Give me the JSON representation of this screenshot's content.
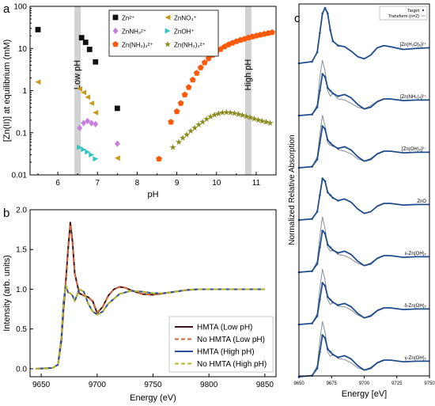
{
  "chart_data": [
    {
      "panel": "a",
      "type": "scatter",
      "xlabel": "pH",
      "ylabel": "[Zn(II)] at equilibrium (mM)",
      "xlim": [
        5.3,
        11.5
      ],
      "ylim": [
        0.01,
        100
      ],
      "yscale": "log",
      "xticks": [
        "6",
        "7",
        "8",
        "9",
        "10",
        "11"
      ],
      "yticks": [
        "0.01",
        "0.1",
        "1",
        "10",
        "100"
      ],
      "bands": [
        {
          "x": [
            6.42,
            6.58
          ],
          "label": "Low pH"
        },
        {
          "x": [
            10.72,
            10.88
          ],
          "label": "High pH"
        }
      ],
      "legend_position": "top-center",
      "series": [
        {
          "name": "Zn²⁺",
          "marker": "square",
          "color": "#111111",
          "x": [
            5.5,
            6.6,
            6.7,
            6.8,
            6.95,
            7.5
          ],
          "y": [
            28,
            18,
            14,
            9.5,
            4.8,
            0.38
          ]
        },
        {
          "name": "ZnNO₃⁺",
          "marker": "triangle-left",
          "color": "#c8991a",
          "x": [
            5.5,
            6.55,
            6.65,
            6.75,
            6.85,
            6.95,
            7.5
          ],
          "y": [
            1.6,
            1.1,
            0.9,
            0.7,
            0.5,
            0.3,
            0.025
          ]
        },
        {
          "name": "ZnNH₃²⁺",
          "marker": "diamond",
          "color": "#c77de0",
          "x": [
            6.55,
            6.65,
            6.75,
            6.85,
            6.95,
            7.5
          ],
          "y": [
            0.13,
            0.17,
            0.19,
            0.17,
            0.16,
            0.055
          ]
        },
        {
          "name": "ZnOH⁺",
          "marker": "triangle-right",
          "color": "#2ec4c4",
          "x": [
            6.55,
            6.65,
            6.75,
            6.85,
            6.95
          ],
          "y": [
            0.045,
            0.04,
            0.035,
            0.03,
            0.024
          ]
        },
        {
          "name": "Zn(NH₃)₄²⁺",
          "marker": "pentagon",
          "color": "#ff5a0a",
          "x": [
            8.55,
            8.85,
            9.0,
            9.1,
            9.2,
            9.3,
            9.4,
            9.5,
            9.6,
            9.7,
            9.8,
            9.9,
            10.0,
            10.1,
            10.2,
            10.3,
            10.4,
            10.5,
            10.6,
            10.7,
            10.8,
            10.9,
            11.0,
            11.1,
            11.2,
            11.3,
            11.4
          ],
          "y": [
            0.024,
            0.18,
            0.32,
            0.5,
            0.8,
            1.2,
            1.8,
            2.6,
            3.5,
            4.6,
            5.8,
            7.0,
            8.3,
            9.6,
            11,
            12.3,
            13.5,
            14.7,
            15.8,
            16.8,
            18,
            19,
            20,
            21,
            22,
            23,
            24
          ]
        },
        {
          "name": "Zn(NH₃)₃²⁺",
          "marker": "star",
          "color": "#8a8a1e",
          "x": [
            8.9,
            9.05,
            9.15,
            9.25,
            9.35,
            9.45,
            9.55,
            9.65,
            9.75,
            9.85,
            9.95,
            10.05,
            10.15,
            10.25,
            10.35,
            10.45,
            10.55,
            10.65,
            10.75,
            10.85,
            10.95,
            11.05,
            11.15,
            11.25,
            11.35
          ],
          "y": [
            0.045,
            0.06,
            0.075,
            0.09,
            0.11,
            0.13,
            0.155,
            0.18,
            0.21,
            0.24,
            0.265,
            0.285,
            0.3,
            0.305,
            0.3,
            0.29,
            0.275,
            0.26,
            0.245,
            0.23,
            0.215,
            0.2,
            0.19,
            0.18,
            0.17
          ]
        }
      ]
    },
    {
      "panel": "b",
      "type": "line",
      "xlabel": "Energy (eV)",
      "ylabel": "Intensity (arb. units)",
      "xlim": [
        9640,
        9860
      ],
      "ylim": [
        -0.1,
        2.0
      ],
      "xticks": [
        "9650",
        "9700",
        "9750",
        "9800",
        "9850"
      ],
      "yticks": [
        "0.0",
        "0.5",
        "1.0",
        "1.5",
        "2.0"
      ],
      "legend_position": "bottom-right",
      "series": [
        {
          "name": "HMTA (Low pH)",
          "color": "#3a1414",
          "dash": "solid",
          "x": [
            9645,
            9660,
            9665,
            9668,
            9670,
            9672,
            9674,
            9676,
            9678,
            9680,
            9684,
            9688,
            9692,
            9696,
            9700,
            9705,
            9710,
            9715,
            9720,
            9725,
            9730,
            9740,
            9750,
            9760,
            9770,
            9780,
            9790,
            9800,
            9820,
            9850
          ],
          "y": [
            0.0,
            0.01,
            0.05,
            0.35,
            0.75,
            1.1,
            1.5,
            1.84,
            1.6,
            1.2,
            0.95,
            0.92,
            0.9,
            0.85,
            0.7,
            0.78,
            0.92,
            1.0,
            1.03,
            1.02,
            0.99,
            0.94,
            0.93,
            0.95,
            0.97,
            0.99,
            1.0,
            1.0,
            1.0,
            1.0
          ]
        },
        {
          "name": "No HMTA (Low pH)",
          "color": "#d0643c",
          "dash": "dashed",
          "x": [
            9645,
            9660,
            9665,
            9668,
            9670,
            9672,
            9674,
            9676,
            9678,
            9680,
            9684,
            9688,
            9692,
            9696,
            9700,
            9705,
            9710,
            9715,
            9720,
            9725,
            9730,
            9740,
            9750,
            9760,
            9770,
            9780,
            9790,
            9800,
            9820,
            9850
          ],
          "y": [
            0.0,
            0.01,
            0.05,
            0.35,
            0.76,
            1.12,
            1.52,
            1.82,
            1.58,
            1.2,
            0.95,
            0.92,
            0.9,
            0.85,
            0.71,
            0.78,
            0.92,
            1.0,
            1.03,
            1.02,
            0.99,
            0.94,
            0.93,
            0.95,
            0.97,
            0.99,
            1.0,
            1.0,
            1.0,
            1.0
          ]
        },
        {
          "name": "HMTA (High pH)",
          "color": "#2b4ea2",
          "dash": "solid",
          "x": [
            9645,
            9660,
            9665,
            9668,
            9670,
            9672,
            9674,
            9676,
            9678,
            9680,
            9684,
            9688,
            9692,
            9696,
            9700,
            9705,
            9710,
            9720,
            9730,
            9740,
            9750,
            9760,
            9770,
            9780,
            9790,
            9800,
            9820,
            9850
          ],
          "y": [
            0.0,
            0.01,
            0.05,
            0.4,
            0.85,
            1.05,
            0.96,
            0.95,
            0.92,
            0.85,
            1.0,
            0.97,
            0.82,
            0.72,
            0.68,
            0.72,
            0.82,
            0.94,
            0.98,
            0.97,
            0.95,
            0.95,
            0.97,
            0.99,
            1.0,
            1.0,
            1.0,
            1.0
          ]
        },
        {
          "name": "No HMTA (High pH)",
          "color": "#b7b42a",
          "dash": "dashed",
          "x": [
            9645,
            9660,
            9665,
            9668,
            9670,
            9672,
            9674,
            9676,
            9678,
            9680,
            9684,
            9688,
            9692,
            9696,
            9700,
            9705,
            9710,
            9720,
            9730,
            9740,
            9750,
            9760,
            9770,
            9780,
            9790,
            9800,
            9820,
            9850
          ],
          "y": [
            0.0,
            0.01,
            0.05,
            0.4,
            0.85,
            1.05,
            0.96,
            0.95,
            0.92,
            0.85,
            1.0,
            0.97,
            0.82,
            0.72,
            0.68,
            0.72,
            0.82,
            0.94,
            0.98,
            0.97,
            0.95,
            0.95,
            0.97,
            0.99,
            1.0,
            1.0,
            1.0,
            1.0
          ]
        }
      ]
    },
    {
      "panel": "c",
      "type": "line",
      "xlabel": "Energy [eV]",
      "ylabel": "Normalized Relative Absorption",
      "xlim": [
        9650,
        9750
      ],
      "xticks": [
        "9650",
        "9675",
        "9700",
        "9725",
        "9750"
      ],
      "legend": [
        "Target",
        "Transform (n=2)"
      ],
      "legend_position": "top-right",
      "target_color": "#1f4d8c",
      "reference_color": "#8a8f98",
      "spectra": [
        {
          "label": "[Zn(H₂O)₆]²⁺",
          "kind": "fit-only",
          "x": [
            9650,
            9660,
            9664,
            9666,
            9668,
            9670,
            9672,
            9674,
            9676,
            9680,
            9685,
            9690,
            9695,
            9700,
            9705,
            9710,
            9715,
            9720,
            9730,
            9740,
            9750
          ],
          "y": [
            0.0,
            0.03,
            0.2,
            0.55,
            0.9,
            1.0,
            0.9,
            0.6,
            0.4,
            0.32,
            0.3,
            0.22,
            0.12,
            0.08,
            0.15,
            0.28,
            0.32,
            0.3,
            0.25,
            0.27,
            0.28
          ]
        },
        {
          "label": "[Zn(NH₃)₄]²⁺",
          "kind": "comparison",
          "x": [
            9650,
            9660,
            9664,
            9666,
            9668,
            9670,
            9672,
            9674,
            9676,
            9680,
            9685,
            9690,
            9695,
            9700,
            9705,
            9710,
            9715,
            9720,
            9730,
            9740,
            9750
          ],
          "y": [
            0.0,
            0.02,
            0.15,
            0.45,
            0.75,
            0.7,
            0.5,
            0.45,
            0.4,
            0.35,
            0.38,
            0.32,
            0.2,
            0.12,
            0.15,
            0.25,
            0.3,
            0.3,
            0.27,
            0.28,
            0.28
          ],
          "ref_y": [
            0.0,
            0.02,
            0.2,
            0.7,
            1.0,
            0.8,
            0.45,
            0.35,
            0.4,
            0.3,
            0.28,
            0.22,
            0.15,
            0.12,
            0.18,
            0.26,
            0.3,
            0.3,
            0.27,
            0.28,
            0.28
          ]
        },
        {
          "label": "[Zn(OH)₄]²⁻",
          "kind": "comparison",
          "x": [
            9650,
            9660,
            9664,
            9666,
            9668,
            9670,
            9672,
            9674,
            9676,
            9680,
            9685,
            9690,
            9695,
            9700,
            9705,
            9710,
            9715,
            9720,
            9730,
            9740,
            9750
          ],
          "y": [
            0.0,
            0.02,
            0.15,
            0.45,
            0.75,
            0.7,
            0.5,
            0.45,
            0.4,
            0.35,
            0.38,
            0.32,
            0.2,
            0.12,
            0.15,
            0.25,
            0.3,
            0.3,
            0.27,
            0.28,
            0.28
          ],
          "ref_y": [
            0.0,
            0.02,
            0.2,
            0.6,
            0.95,
            0.75,
            0.45,
            0.4,
            0.42,
            0.33,
            0.3,
            0.25,
            0.16,
            0.12,
            0.17,
            0.26,
            0.3,
            0.3,
            0.27,
            0.28,
            0.28
          ]
        },
        {
          "label": "ZnO",
          "kind": "comparison",
          "x": [
            9650,
            9660,
            9664,
            9666,
            9668,
            9670,
            9672,
            9674,
            9676,
            9680,
            9685,
            9690,
            9695,
            9700,
            9705,
            9710,
            9715,
            9720,
            9730,
            9740,
            9750
          ],
          "y": [
            0.0,
            0.02,
            0.15,
            0.45,
            0.75,
            0.7,
            0.5,
            0.45,
            0.4,
            0.35,
            0.38,
            0.32,
            0.2,
            0.12,
            0.15,
            0.25,
            0.3,
            0.3,
            0.27,
            0.28,
            0.28
          ],
          "ref_y": [
            0.0,
            0.02,
            0.15,
            0.45,
            0.75,
            0.7,
            0.5,
            0.45,
            0.4,
            0.35,
            0.38,
            0.32,
            0.2,
            0.12,
            0.15,
            0.25,
            0.3,
            0.3,
            0.27,
            0.28,
            0.28
          ]
        },
        {
          "label": "ε-Zn(OH)₂",
          "kind": "comparison",
          "x": [
            9650,
            9660,
            9664,
            9666,
            9668,
            9670,
            9672,
            9674,
            9676,
            9680,
            9685,
            9690,
            9695,
            9700,
            9705,
            9710,
            9715,
            9720,
            9730,
            9740,
            9750
          ],
          "y": [
            0.0,
            0.02,
            0.15,
            0.45,
            0.75,
            0.7,
            0.5,
            0.45,
            0.4,
            0.35,
            0.38,
            0.32,
            0.2,
            0.12,
            0.15,
            0.25,
            0.3,
            0.3,
            0.27,
            0.28,
            0.28
          ],
          "ref_y": [
            0.0,
            0.02,
            0.2,
            0.65,
            1.0,
            0.78,
            0.45,
            0.38,
            0.4,
            0.32,
            0.3,
            0.24,
            0.16,
            0.12,
            0.17,
            0.26,
            0.3,
            0.3,
            0.27,
            0.28,
            0.28
          ]
        },
        {
          "label": "δ-Zn(OH)₂",
          "kind": "comparison",
          "x": [
            9650,
            9660,
            9664,
            9666,
            9668,
            9670,
            9672,
            9674,
            9676,
            9680,
            9685,
            9690,
            9695,
            9700,
            9705,
            9710,
            9715,
            9720,
            9730,
            9740,
            9750
          ],
          "y": [
            0.0,
            0.02,
            0.15,
            0.45,
            0.75,
            0.7,
            0.5,
            0.45,
            0.4,
            0.35,
            0.38,
            0.32,
            0.2,
            0.12,
            0.15,
            0.25,
            0.3,
            0.3,
            0.27,
            0.28,
            0.28
          ],
          "ref_y": [
            0.0,
            0.02,
            0.2,
            0.65,
            1.0,
            0.8,
            0.45,
            0.36,
            0.4,
            0.33,
            0.32,
            0.26,
            0.17,
            0.12,
            0.17,
            0.26,
            0.3,
            0.3,
            0.27,
            0.28,
            0.28
          ]
        },
        {
          "label": "γ-Zn(OH)₂",
          "kind": "comparison",
          "x": [
            9650,
            9660,
            9664,
            9666,
            9668,
            9670,
            9672,
            9674,
            9676,
            9680,
            9685,
            9690,
            9695,
            9700,
            9705,
            9710,
            9715,
            9720,
            9730,
            9740,
            9750
          ],
          "y": [
            0.0,
            0.02,
            0.15,
            0.45,
            0.75,
            0.7,
            0.5,
            0.45,
            0.4,
            0.35,
            0.38,
            0.32,
            0.2,
            0.12,
            0.15,
            0.25,
            0.3,
            0.3,
            0.27,
            0.28,
            0.28
          ],
          "ref_y": [
            0.0,
            0.02,
            0.2,
            0.65,
            1.0,
            0.8,
            0.45,
            0.37,
            0.4,
            0.33,
            0.31,
            0.25,
            0.16,
            0.12,
            0.17,
            0.26,
            0.3,
            0.3,
            0.27,
            0.28,
            0.28
          ]
        }
      ]
    }
  ]
}
